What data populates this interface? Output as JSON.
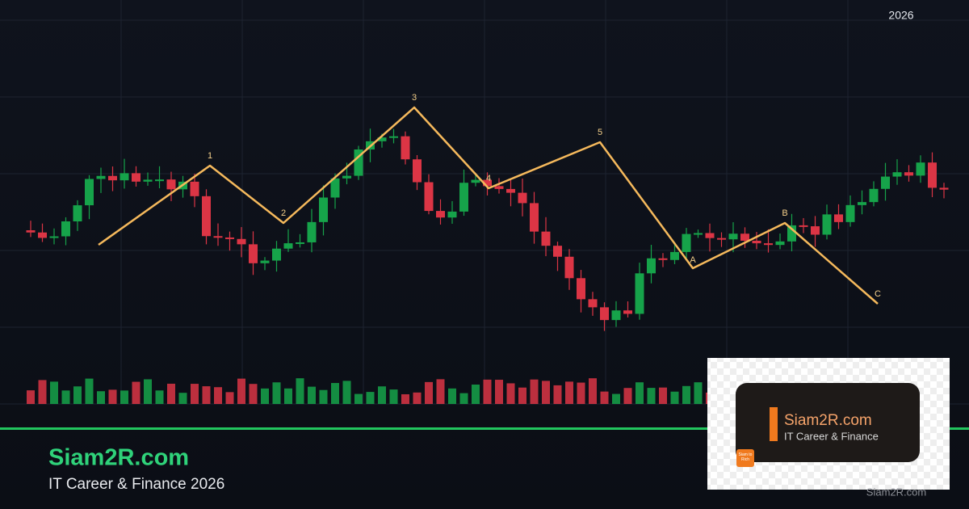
{
  "header": {
    "year": "2026"
  },
  "wave_labels": [
    "1",
    "2",
    "3",
    "4",
    "5",
    "A",
    "B",
    "C"
  ],
  "brand": {
    "name": "Siam2R.com",
    "tagline": "IT Career & Finance 2026"
  },
  "logo_card": {
    "name": "Siam2R.com",
    "tagline": "IT Career & Finance",
    "badge": "Siam to Rich"
  },
  "watermark": "Siam2R.com"
}
